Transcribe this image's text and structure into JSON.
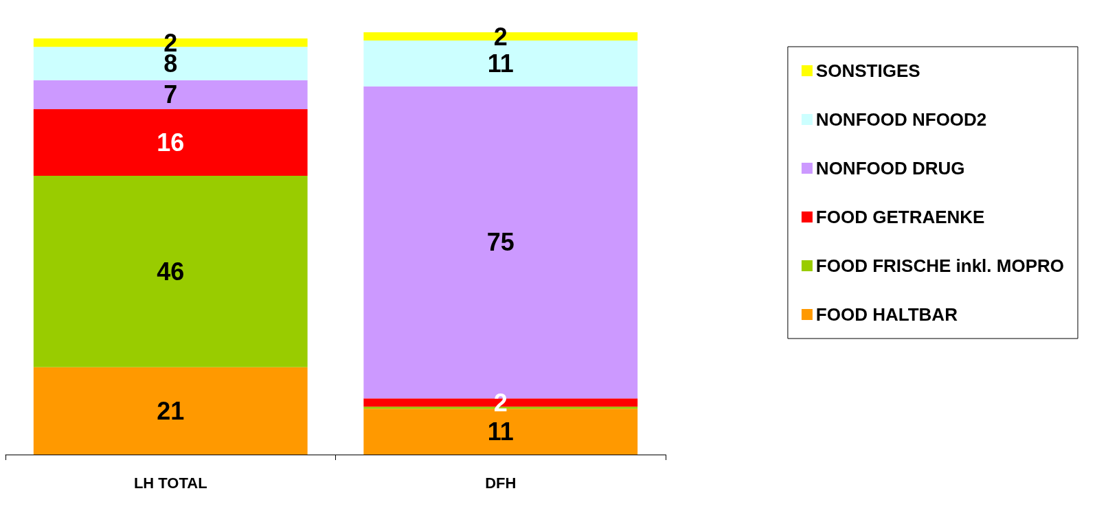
{
  "chart_data": {
    "type": "bar",
    "stacked": true,
    "categories": [
      "LH TOTAL",
      "DFH"
    ],
    "legend": "right",
    "series": [
      {
        "name": "FOOD HALTBAR",
        "color": "#ff9900",
        "values": [
          21,
          11
        ],
        "value_labels": [
          "21",
          "11"
        ]
      },
      {
        "name": "FOOD FRISCHE inkl. MOPRO",
        "color": "#99cc00",
        "values": [
          46,
          0.5
        ],
        "value_labels": [
          "46",
          null
        ]
      },
      {
        "name": "FOOD GETRAENKE",
        "color": "#ff0000",
        "values": [
          16,
          2
        ],
        "value_labels": [
          "16",
          "2"
        ]
      },
      {
        "name": "NONFOOD DRUG",
        "color": "#cc99ff",
        "values": [
          7,
          75
        ],
        "value_labels": [
          "7",
          "75"
        ]
      },
      {
        "name": "NONFOOD NFOOD2",
        "color": "#ccffff",
        "values": [
          8,
          11
        ],
        "value_labels": [
          "8",
          "11"
        ]
      },
      {
        "name": "SONSTIGES",
        "color": "#ffff00",
        "values": [
          2,
          2
        ],
        "value_labels": [
          "2",
          "2"
        ]
      }
    ]
  }
}
